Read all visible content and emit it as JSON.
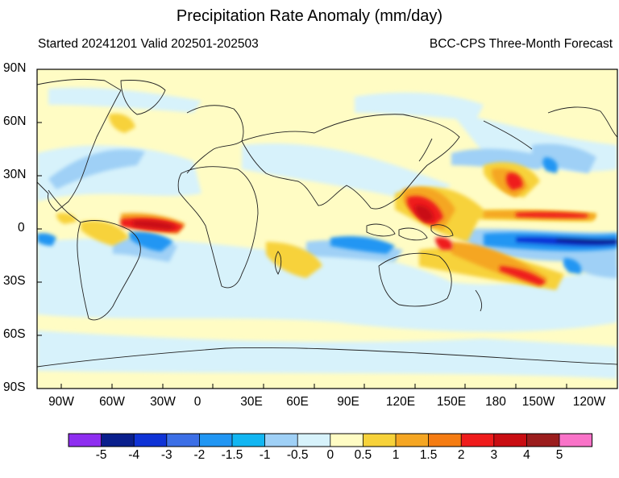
{
  "title": "Precipitation Rate Anomaly (mm/day)",
  "subtitle_left": "Started 20241201  Valid 202501-202503",
  "subtitle_right": "BCC-CPS Three-Month Forecast",
  "map": {
    "projection": "cylindrical-equidistant",
    "lon_range_east": [
      -105,
      240
    ],
    "lat_range": [
      -90,
      90
    ],
    "lat_ticks": [
      "90N",
      "60N",
      "30N",
      "0",
      "30S",
      "60S",
      "90S"
    ],
    "lon_ticks": [
      "90W",
      "60W",
      "30W",
      "0",
      "30E",
      "60E",
      "90E",
      "120E",
      "150E",
      "180",
      "150W",
      "120W"
    ]
  },
  "colorbar": {
    "labels": [
      "-5",
      "-4",
      "-3",
      "-2",
      "-1.5",
      "-1",
      "-0.5",
      "0",
      "0.5",
      "1",
      "1.5",
      "2",
      "3",
      "4",
      "5"
    ],
    "colors": [
      "#8e2ef0",
      "#0a1f8c",
      "#0f33d6",
      "#3c6fe6",
      "#2196f3",
      "#12b6f2",
      "#9fd0f6",
      "#d7f2fb",
      "#fffcc4",
      "#f7d23a",
      "#f5a623",
      "#f57c12",
      "#ef1c1c",
      "#c90d12",
      "#9b1d1d",
      "#f973c8"
    ]
  },
  "anomaly_features": [
    {
      "name": "west-pacific-wet",
      "color": "#ef1c1c"
    },
    {
      "name": "central-pacific-dry",
      "color": "#0f33d6"
    },
    {
      "name": "amazon-wet",
      "color": "#ef1c1c"
    },
    {
      "name": "spcz-wet",
      "color": "#f57c12"
    },
    {
      "name": "north-pacific-wet",
      "color": "#f57c12"
    }
  ]
}
